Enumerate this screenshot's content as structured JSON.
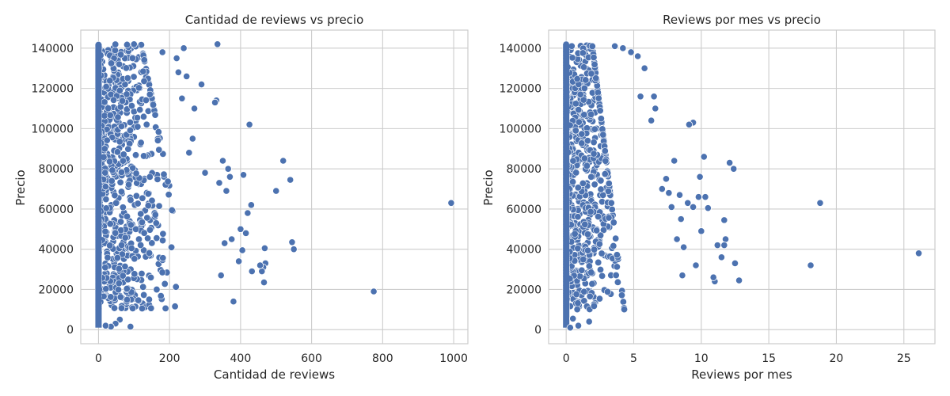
{
  "chart_data": [
    {
      "type": "scatter",
      "title": "Cantidad de reviews vs precio",
      "xlabel": "Cantidad de reviews",
      "ylabel": "Precio",
      "xlim": [
        -50,
        1040
      ],
      "ylim": [
        -7000,
        149000
      ],
      "xticks": [
        0,
        200,
        400,
        600,
        800,
        1000
      ],
      "xtick_labels": [
        "0",
        "200",
        "400",
        "600",
        "800",
        "1000"
      ],
      "yticks": [
        0,
        20000,
        40000,
        60000,
        80000,
        100000,
        120000,
        140000
      ],
      "ytick_labels": [
        "0",
        "20000",
        "40000",
        "60000",
        "80000",
        "100000",
        "120000",
        "140000"
      ],
      "grid": true,
      "color": "#4c72b0",
      "points": [
        [
          993,
          63000
        ],
        [
          775,
          19000
        ],
        [
          550,
          40000
        ],
        [
          545,
          43500
        ],
        [
          540,
          74500
        ],
        [
          520,
          84000
        ],
        [
          500,
          69000
        ],
        [
          470,
          33000
        ],
        [
          468,
          40500
        ],
        [
          466,
          23500
        ],
        [
          464,
          31000
        ],
        [
          460,
          29000
        ],
        [
          455,
          32000
        ],
        [
          432,
          29000
        ],
        [
          430,
          62000
        ],
        [
          425,
          102000
        ],
        [
          420,
          58000
        ],
        [
          415,
          48000
        ],
        [
          408,
          77000
        ],
        [
          405,
          39500
        ],
        [
          400,
          50000
        ],
        [
          395,
          34000
        ],
        [
          380,
          14000
        ],
        [
          375,
          45000
        ],
        [
          370,
          76000
        ],
        [
          365,
          80000
        ],
        [
          360,
          69000
        ],
        [
          355,
          43000
        ],
        [
          350,
          84000
        ],
        [
          345,
          27000
        ],
        [
          340,
          73000
        ],
        [
          335,
          142000
        ],
        [
          332,
          114000
        ],
        [
          328,
          113000
        ],
        [
          300,
          78000
        ],
        [
          290,
          122000
        ],
        [
          270,
          110000
        ],
        [
          265,
          95000
        ],
        [
          255,
          88000
        ],
        [
          248,
          126000
        ],
        [
          240,
          140000
        ],
        [
          235,
          115000
        ],
        [
          225,
          128000
        ],
        [
          220,
          135000
        ],
        [
          180,
          138000
        ],
        [
          100,
          142000
        ],
        [
          90,
          1500
        ],
        [
          60,
          5000
        ],
        [
          48,
          3000
        ],
        [
          35,
          1500
        ],
        [
          20,
          2000
        ]
      ]
    },
    {
      "type": "scatter",
      "title": "Reviews por mes vs precio",
      "xlabel": "Reviews por mes",
      "ylabel": "Precio",
      "xlim": [
        -1.3,
        27.3
      ],
      "ylim": [
        -7000,
        149000
      ],
      "xticks": [
        0,
        5,
        10,
        15,
        20,
        25
      ],
      "xtick_labels": [
        "0",
        "5",
        "10",
        "15",
        "20",
        "25"
      ],
      "yticks": [
        0,
        20000,
        40000,
        60000,
        80000,
        100000,
        120000,
        140000
      ],
      "ytick_labels": [
        "0",
        "20000",
        "40000",
        "60000",
        "80000",
        "100000",
        "120000",
        "140000"
      ],
      "grid": true,
      "color": "#4c72b0",
      "points": [
        [
          26.1,
          38000
        ],
        [
          18.8,
          63000
        ],
        [
          18.1,
          32000
        ],
        [
          12.8,
          24500
        ],
        [
          12.5,
          33000
        ],
        [
          12.4,
          80000
        ],
        [
          12.1,
          83000
        ],
        [
          11.8,
          45000
        ],
        [
          11.7,
          42000
        ],
        [
          11.7,
          54500
        ],
        [
          11.5,
          36000
        ],
        [
          11.2,
          42000
        ],
        [
          11.0,
          24000
        ],
        [
          10.9,
          26000
        ],
        [
          10.5,
          60500
        ],
        [
          10.3,
          66000
        ],
        [
          10.2,
          86000
        ],
        [
          10.0,
          49000
        ],
        [
          9.9,
          76000
        ],
        [
          9.8,
          66000
        ],
        [
          9.6,
          32000
        ],
        [
          9.4,
          103000
        ],
        [
          9.4,
          61000
        ],
        [
          9.1,
          102000
        ],
        [
          9.0,
          63000
        ],
        [
          8.7,
          41000
        ],
        [
          8.6,
          27000
        ],
        [
          8.5,
          55000
        ],
        [
          8.4,
          67000
        ],
        [
          8.2,
          45000
        ],
        [
          8.0,
          84000
        ],
        [
          7.8,
          61000
        ],
        [
          7.6,
          68000
        ],
        [
          7.4,
          75000
        ],
        [
          7.1,
          70000
        ],
        [
          6.6,
          110000
        ],
        [
          6.5,
          116000
        ],
        [
          6.3,
          104000
        ],
        [
          5.8,
          130000
        ],
        [
          5.5,
          116000
        ],
        [
          5.3,
          136000
        ],
        [
          4.8,
          138000
        ],
        [
          4.2,
          140000
        ],
        [
          3.6,
          141000
        ],
        [
          1.7,
          4000
        ],
        [
          0.9,
          2000
        ],
        [
          0.5,
          5500
        ],
        [
          0.3,
          1000
        ]
      ]
    }
  ]
}
